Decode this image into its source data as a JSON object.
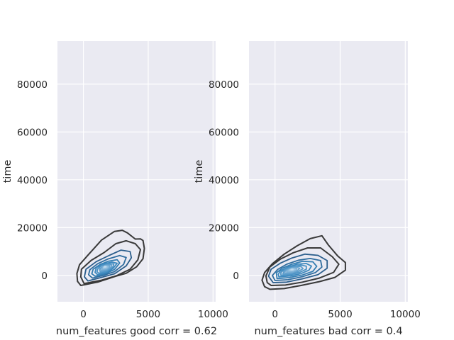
{
  "chart_data": [
    {
      "type": "kde_contour",
      "xlabel": "num_features good corr = 0.62",
      "ylabel": "time",
      "xlim": [
        -2000,
        10200
      ],
      "ylim": [
        -11000,
        98000
      ],
      "xticks": [
        0,
        5000,
        10000
      ],
      "yticks": [
        0,
        20000,
        40000,
        60000,
        80000
      ],
      "grid": true,
      "density_peak": {
        "x": 1600,
        "y": 3800
      },
      "contour_levels": [
        {
          "rank": 1,
          "color": "#393939",
          "points": [
            [
              -200,
              -4200
            ],
            [
              1100,
              -2800
            ],
            [
              2500,
              -300
            ],
            [
              3300,
              900
            ],
            [
              4100,
              3600
            ],
            [
              4600,
              7000
            ],
            [
              4700,
              11300
            ],
            [
              4600,
              14600
            ],
            [
              4400,
              15300
            ],
            [
              4000,
              15200
            ],
            [
              3400,
              17800
            ],
            [
              3000,
              18900
            ],
            [
              2400,
              18400
            ],
            [
              1400,
              14800
            ],
            [
              400,
              8800
            ],
            [
              -300,
              4500
            ],
            [
              -500,
              800
            ],
            [
              -450,
              -2500
            ]
          ]
        },
        {
          "rank": 2,
          "color": "#393939",
          "points": [
            [
              50,
              -3400
            ],
            [
              1400,
              -2000
            ],
            [
              2600,
              0
            ],
            [
              3600,
              2600
            ],
            [
              4200,
              6500
            ],
            [
              4400,
              10800
            ],
            [
              4000,
              13300
            ],
            [
              3300,
              14500
            ],
            [
              2500,
              13300
            ],
            [
              1600,
              9600
            ],
            [
              600,
              6300
            ],
            [
              -150,
              2600
            ],
            [
              -200,
              -600
            ]
          ]
        },
        {
          "rank": 3,
          "color": "#2b5e8c",
          "points": [
            [
              350,
              -2300
            ],
            [
              1400,
              -800
            ],
            [
              2400,
              700
            ],
            [
              3300,
              4000
            ],
            [
              3700,
              7400
            ],
            [
              3600,
              10000
            ],
            [
              2900,
              10600
            ],
            [
              2000,
              8400
            ],
            [
              1000,
              5800
            ],
            [
              200,
              2600
            ],
            [
              80,
              -600
            ]
          ]
        },
        {
          "rank": 4,
          "color": "#2f6d9f",
          "points": [
            [
              700,
              -1100
            ],
            [
              1600,
              100
            ],
            [
              2400,
              1600
            ],
            [
              3100,
              4600
            ],
            [
              3300,
              7500
            ],
            [
              2800,
              8300
            ],
            [
              1900,
              6900
            ],
            [
              1100,
              4900
            ],
            [
              500,
              2400
            ],
            [
              400,
              300
            ]
          ]
        },
        {
          "rank": 5,
          "color": "#347db1",
          "points": [
            [
              900,
              -300
            ],
            [
              1700,
              700
            ],
            [
              2400,
              2500
            ],
            [
              2800,
              5200
            ],
            [
              2600,
              6600
            ],
            [
              1900,
              5900
            ],
            [
              1300,
              4600
            ],
            [
              750,
              2600
            ],
            [
              650,
              700
            ]
          ]
        },
        {
          "rank": 6,
          "color": "#3b87bd",
          "points": [
            [
              1100,
              300
            ],
            [
              1800,
              1200
            ],
            [
              2300,
              3000
            ],
            [
              2600,
              5100
            ],
            [
              2200,
              5600
            ],
            [
              1600,
              4900
            ],
            [
              1000,
              3300
            ],
            [
              900,
              1300
            ]
          ]
        },
        {
          "rank": 7,
          "color": "#4a92c4",
          "points": [
            [
              1200,
              900
            ],
            [
              1800,
              1700
            ],
            [
              2250,
              3300
            ],
            [
              2350,
              4800
            ],
            [
              1900,
              5000
            ],
            [
              1400,
              4200
            ],
            [
              1100,
              2800
            ],
            [
              1050,
              1500
            ]
          ]
        },
        {
          "rank": 8,
          "color": "#5b9ccb",
          "points": [
            [
              1300,
              1500
            ],
            [
              1800,
              2100
            ],
            [
              2150,
              3300
            ],
            [
              2150,
              4500
            ],
            [
              1800,
              4500
            ],
            [
              1450,
              3700
            ],
            [
              1250,
              2700
            ]
          ]
        },
        {
          "rank": 9,
          "color": "#6ca6d0",
          "points": [
            [
              1400,
              2000
            ],
            [
              1800,
              2500
            ],
            [
              2050,
              3400
            ],
            [
              2000,
              4200
            ],
            [
              1700,
              4200
            ],
            [
              1450,
              3500
            ],
            [
              1350,
              2700
            ]
          ]
        },
        {
          "rank": 10,
          "color": "#7fb2d7",
          "points": [
            [
              1480,
              2500
            ],
            [
              1800,
              2800
            ],
            [
              1950,
              3500
            ],
            [
              1850,
              4000
            ],
            [
              1650,
              3950
            ],
            [
              1480,
              3400
            ]
          ]
        },
        {
          "rank": 11,
          "color": "#94bfdf",
          "points": [
            [
              1530,
              2900
            ],
            [
              1780,
              3100
            ],
            [
              1870,
              3600
            ],
            [
              1750,
              3850
            ],
            [
              1580,
              3650
            ]
          ]
        },
        {
          "rank": 12,
          "color": "#aacde6",
          "points": [
            [
              1570,
              3300
            ],
            [
              1740,
              3400
            ],
            [
              1780,
              3700
            ],
            [
              1640,
              3750
            ]
          ]
        },
        {
          "rank": 13,
          "color": "#c2dbee",
          "points": [
            [
              1610,
              3550
            ],
            [
              1700,
              3600
            ],
            [
              1700,
              3750
            ],
            [
              1630,
              3720
            ]
          ]
        }
      ]
    },
    {
      "type": "kde_contour",
      "xlabel": "num_features bad corr = 0.4",
      "ylabel": "time",
      "xlim": [
        -2000,
        10200
      ],
      "ylim": [
        -11000,
        98000
      ],
      "xticks": [
        0,
        5000,
        10000
      ],
      "yticks": [
        0,
        20000,
        40000,
        60000,
        80000
      ],
      "grid": true,
      "density_peak": {
        "x": 1300,
        "y": 2500
      },
      "contour_levels": [
        {
          "rank": 1,
          "color": "#393939",
          "points": [
            [
              -400,
              -5800
            ],
            [
              700,
              -5500
            ],
            [
              2000,
              -4200
            ],
            [
              3400,
              -2600
            ],
            [
              4600,
              -800
            ],
            [
              5400,
              2200
            ],
            [
              5400,
              5400
            ],
            [
              4800,
              8200
            ],
            [
              4100,
              12700
            ],
            [
              3600,
              16600
            ],
            [
              2700,
              15400
            ],
            [
              1700,
              12400
            ],
            [
              700,
              8900
            ],
            [
              -200,
              4900
            ],
            [
              -800,
              1200
            ],
            [
              -1000,
              -2000
            ],
            [
              -800,
              -4700
            ]
          ]
        },
        {
          "rank": 2,
          "color": "#393939",
          "points": [
            [
              -300,
              -4200
            ],
            [
              800,
              -4000
            ],
            [
              2100,
              -2800
            ],
            [
              3400,
              -1100
            ],
            [
              4500,
              1300
            ],
            [
              4900,
              4700
            ],
            [
              4400,
              7800
            ],
            [
              3500,
              11500
            ],
            [
              2500,
              11500
            ],
            [
              1400,
              9500
            ],
            [
              400,
              6800
            ],
            [
              -400,
              3500
            ],
            [
              -700,
              -200
            ],
            [
              -600,
              -3000
            ]
          ]
        },
        {
          "rank": 3,
          "color": "#2b5e8c",
          "points": [
            [
              -150,
              -3000
            ],
            [
              900,
              -2800
            ],
            [
              2100,
              -1400
            ],
            [
              3300,
              300
            ],
            [
              4000,
              3000
            ],
            [
              4000,
              6200
            ],
            [
              3300,
              8400
            ],
            [
              2300,
              8900
            ],
            [
              1300,
              7300
            ],
            [
              400,
              5100
            ],
            [
              -300,
              2600
            ],
            [
              -500,
              -300
            ]
          ]
        },
        {
          "rank": 4,
          "color": "#2f6d9f",
          "points": [
            [
              0,
              -2100
            ],
            [
              1000,
              -1800
            ],
            [
              2100,
              -500
            ],
            [
              3100,
              1200
            ],
            [
              3600,
              3500
            ],
            [
              3500,
              6200
            ],
            [
              2700,
              7100
            ],
            [
              1800,
              6400
            ],
            [
              900,
              4700
            ],
            [
              200,
              2500
            ],
            [
              -200,
              0
            ]
          ]
        },
        {
          "rank": 5,
          "color": "#347db1",
          "points": [
            [
              150,
              -1300
            ],
            [
              1100,
              -900
            ],
            [
              2100,
              200
            ],
            [
              2900,
              1700
            ],
            [
              3200,
              3800
            ],
            [
              2900,
              5700
            ],
            [
              2100,
              5900
            ],
            [
              1300,
              4700
            ],
            [
              550,
              3000
            ],
            [
              100,
              1100
            ]
          ]
        },
        {
          "rank": 6,
          "color": "#3b87bd",
          "points": [
            [
              300,
              -600
            ],
            [
              1200,
              -200
            ],
            [
              2000,
              800
            ],
            [
              2600,
              2200
            ],
            [
              2800,
              3900
            ],
            [
              2400,
              5000
            ],
            [
              1700,
              4700
            ],
            [
              1000,
              3500
            ],
            [
              400,
              1900
            ],
            [
              250,
              500
            ]
          ]
        },
        {
          "rank": 7,
          "color": "#4a92c4",
          "points": [
            [
              450,
              0
            ],
            [
              1200,
              300
            ],
            [
              1900,
              1300
            ],
            [
              2400,
              2600
            ],
            [
              2400,
              3900
            ],
            [
              2000,
              4300
            ],
            [
              1400,
              3800
            ],
            [
              800,
              2800
            ],
            [
              450,
              1300
            ]
          ]
        },
        {
          "rank": 8,
          "color": "#5b9ccb",
          "points": [
            [
              600,
              500
            ],
            [
              1250,
              800
            ],
            [
              1800,
              1700
            ],
            [
              2150,
              2800
            ],
            [
              2000,
              3700
            ],
            [
              1600,
              3700
            ],
            [
              1100,
              3000
            ],
            [
              700,
              2000
            ]
          ]
        },
        {
          "rank": 9,
          "color": "#6ca6d0",
          "points": [
            [
              750,
              1000
            ],
            [
              1300,
              1200
            ],
            [
              1700,
              2000
            ],
            [
              1900,
              2900
            ],
            [
              1700,
              3300
            ],
            [
              1300,
              3100
            ],
            [
              950,
              2400
            ],
            [
              750,
              1600
            ]
          ]
        },
        {
          "rank": 10,
          "color": "#7fb2d7",
          "points": [
            [
              900,
              1500
            ],
            [
              1350,
              1600
            ],
            [
              1650,
              2300
            ],
            [
              1650,
              2900
            ],
            [
              1400,
              2950
            ],
            [
              1100,
              2500
            ],
            [
              900,
              1900
            ]
          ]
        },
        {
          "rank": 11,
          "color": "#94bfdf",
          "points": [
            [
              1050,
              1900
            ],
            [
              1350,
              2000
            ],
            [
              1550,
              2400
            ],
            [
              1500,
              2750
            ],
            [
              1280,
              2700
            ],
            [
              1100,
              2300
            ]
          ]
        },
        {
          "rank": 12,
          "color": "#aacde6",
          "points": [
            [
              1150,
              2200
            ],
            [
              1380,
              2300
            ],
            [
              1450,
              2550
            ],
            [
              1300,
              2650
            ],
            [
              1180,
              2450
            ]
          ]
        },
        {
          "rank": 13,
          "color": "#c2dbee",
          "points": [
            [
              1240,
              2420
            ],
            [
              1360,
              2460
            ],
            [
              1360,
              2580
            ],
            [
              1260,
              2560
            ]
          ]
        }
      ]
    }
  ]
}
